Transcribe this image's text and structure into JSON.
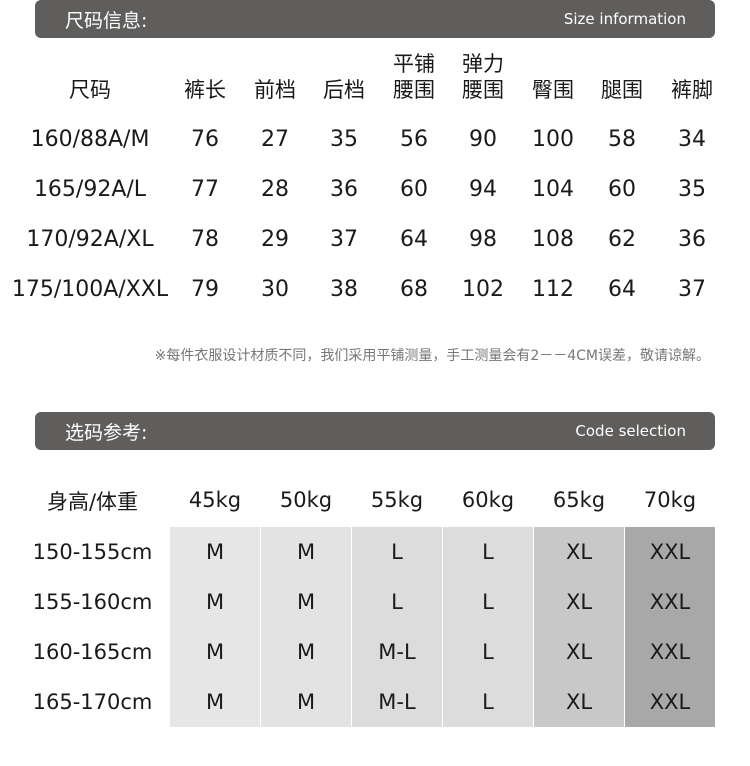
{
  "size_info": {
    "title": "尺码信息:",
    "subtitle": "Size information",
    "headers": [
      [
        "",
        "尺码"
      ],
      [
        "",
        "裤长"
      ],
      [
        "",
        "前档"
      ],
      [
        "",
        "后档"
      ],
      [
        "平铺",
        "腰围"
      ],
      [
        "弹力",
        "腰围"
      ],
      [
        "",
        "臀围"
      ],
      [
        "",
        "腿围"
      ],
      [
        "",
        "裤脚"
      ]
    ],
    "rows": [
      [
        "160/88A/M",
        "76",
        "27",
        "35",
        "56",
        "90",
        "100",
        "58",
        "34"
      ],
      [
        "165/92A/L",
        "77",
        "28",
        "36",
        "60",
        "94",
        "104",
        "60",
        "35"
      ],
      [
        "170/92A/XL",
        "78",
        "29",
        "37",
        "64",
        "98",
        "108",
        "62",
        "36"
      ],
      [
        "175/100A/XXL",
        "79",
        "30",
        "38",
        "68",
        "102",
        "112",
        "64",
        "37"
      ]
    ],
    "note": "※每件衣服设计材质不同，我们采用平铺测量，手工测量会有2－－4CM误差，敬请谅解。"
  },
  "code_selection": {
    "title": "选码参考:",
    "subtitle": "Code selection",
    "corner": "身高/体重",
    "weights": [
      "45kg",
      "50kg",
      "55kg",
      "60kg",
      "65kg",
      "70kg"
    ],
    "heights": [
      "150-155cm",
      "155-160cm",
      "160-165cm",
      "165-170cm"
    ],
    "grid": [
      [
        "M",
        "M",
        "L",
        "L",
        "XL",
        "XXL"
      ],
      [
        "M",
        "M",
        "L",
        "L",
        "XL",
        "XXL"
      ],
      [
        "M",
        "M",
        "M-L",
        "L",
        "XL",
        "XXL"
      ],
      [
        "M",
        "M",
        "M-L",
        "L",
        "XL",
        "XXL"
      ]
    ],
    "column_colors": [
      "#e6e6e6",
      "#e3e3e3",
      "#dcdcdc",
      "#dcdcdc",
      "#c8c8c8",
      "#a8a8a8"
    ]
  }
}
